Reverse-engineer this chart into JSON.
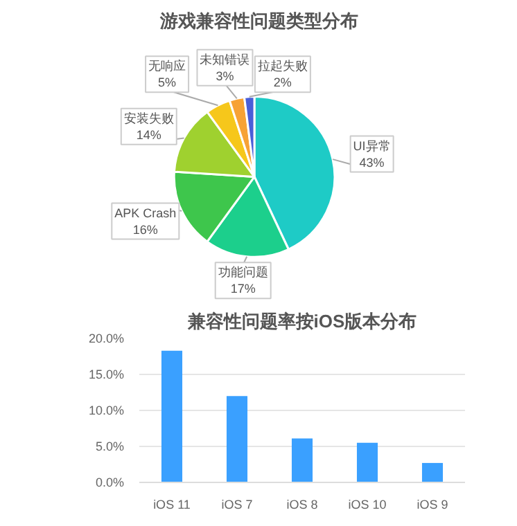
{
  "chart_data": [
    {
      "type": "pie",
      "title": "游戏兼容性问题类型分布",
      "categories": [
        "UI异常",
        "功能问题",
        "APK Crash",
        "安装失败",
        "无响应",
        "未知错误",
        "拉起失败"
      ],
      "values": [
        43,
        17,
        16,
        14,
        5,
        3,
        2
      ],
      "colors": [
        "#1ecbc6",
        "#1ccf8c",
        "#3ec64c",
        "#9fd12f",
        "#f6c71b",
        "#f7a235",
        "#4a5ed8"
      ],
      "value_labels": [
        "43%",
        "17%",
        "16%",
        "14%",
        "5%",
        "3%",
        "2%"
      ]
    },
    {
      "type": "bar",
      "title": "兼容性问题率按iOS版本分布",
      "categories": [
        "iOS 11",
        "iOS 7",
        "iOS 8",
        "iOS 10",
        "iOS 9"
      ],
      "values": [
        18.3,
        12.0,
        6.1,
        5.5,
        2.7
      ],
      "color": "#3aa0ff",
      "ylim": [
        0,
        20
      ],
      "yticks": [
        {
          "value": 0,
          "label": "0.0%"
        },
        {
          "value": 5,
          "label": "5.0%"
        },
        {
          "value": 10,
          "label": "10.0%"
        },
        {
          "value": 15,
          "label": "15.0%"
        },
        {
          "value": 20,
          "label": "20.0%"
        }
      ],
      "grid": "y"
    }
  ]
}
